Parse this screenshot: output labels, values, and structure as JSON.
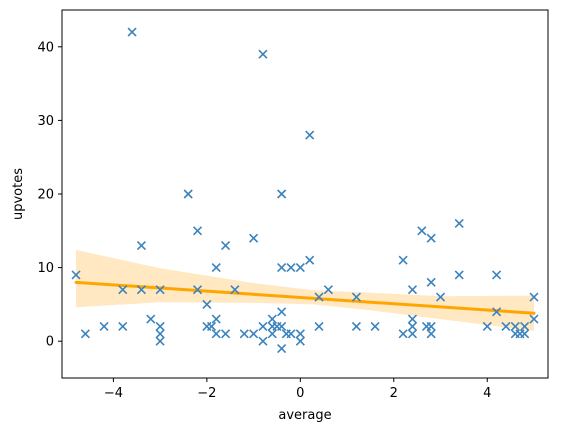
{
  "chart_data": {
    "type": "scatter",
    "title": "",
    "xlabel": "average",
    "ylabel": "upvotes",
    "xlim": [
      -5.1,
      5.3
    ],
    "ylim": [
      -5,
      45
    ],
    "xticks": [
      -4,
      -2,
      0,
      2,
      4
    ],
    "xtick_labels": [
      "−4",
      "−2",
      "0",
      "2",
      "4"
    ],
    "yticks": [
      0,
      10,
      20,
      30,
      40
    ],
    "ytick_labels": [
      "0",
      "10",
      "20",
      "30",
      "40"
    ],
    "grid": false,
    "marker": "x",
    "colors": {
      "points": "#3b83bd",
      "fit_line": "#ffa500",
      "confidence_band": "#ffe8c2"
    },
    "points": [
      [
        -4.8,
        9
      ],
      [
        -4.6,
        1
      ],
      [
        -4.2,
        2
      ],
      [
        -3.8,
        7
      ],
      [
        -3.8,
        2
      ],
      [
        -3.6,
        42
      ],
      [
        -3.4,
        13
      ],
      [
        -3.4,
        7
      ],
      [
        -3.2,
        3
      ],
      [
        -3.0,
        7
      ],
      [
        -3.0,
        2
      ],
      [
        -3.0,
        1
      ],
      [
        -3.0,
        0
      ],
      [
        -2.4,
        20
      ],
      [
        -2.2,
        15
      ],
      [
        -2.2,
        7
      ],
      [
        -2.0,
        5
      ],
      [
        -2.0,
        2
      ],
      [
        -1.9,
        2
      ],
      [
        -1.8,
        10
      ],
      [
        -1.8,
        3
      ],
      [
        -1.8,
        1
      ],
      [
        -1.6,
        13
      ],
      [
        -1.6,
        1
      ],
      [
        -1.4,
        7
      ],
      [
        -1.2,
        1
      ],
      [
        -1.0,
        14
      ],
      [
        -1.0,
        1
      ],
      [
        -0.8,
        39
      ],
      [
        -0.8,
        2
      ],
      [
        -0.8,
        0
      ],
      [
        -0.6,
        3
      ],
      [
        -0.6,
        2
      ],
      [
        -0.6,
        1
      ],
      [
        -0.5,
        2
      ],
      [
        -0.4,
        20
      ],
      [
        -0.4,
        10
      ],
      [
        -0.4,
        4
      ],
      [
        -0.4,
        2
      ],
      [
        -0.4,
        -1
      ],
      [
        -0.3,
        1
      ],
      [
        -0.2,
        10
      ],
      [
        -0.2,
        1
      ],
      [
        0.0,
        10
      ],
      [
        0.0,
        1
      ],
      [
        0.0,
        0
      ],
      [
        0.2,
        28
      ],
      [
        0.2,
        11
      ],
      [
        0.4,
        6
      ],
      [
        0.4,
        2
      ],
      [
        0.6,
        7
      ],
      [
        1.2,
        6
      ],
      [
        1.2,
        2
      ],
      [
        1.6,
        2
      ],
      [
        2.2,
        11
      ],
      [
        2.2,
        1
      ],
      [
        2.4,
        7
      ],
      [
        2.4,
        3
      ],
      [
        2.4,
        2
      ],
      [
        2.4,
        1
      ],
      [
        2.6,
        15
      ],
      [
        2.7,
        2
      ],
      [
        2.8,
        14
      ],
      [
        2.8,
        8
      ],
      [
        2.8,
        2
      ],
      [
        2.8,
        1
      ],
      [
        3.0,
        6
      ],
      [
        3.4,
        16
      ],
      [
        3.4,
        9
      ],
      [
        4.0,
        2
      ],
      [
        4.2,
        9
      ],
      [
        4.2,
        4
      ],
      [
        4.4,
        2
      ],
      [
        4.6,
        2
      ],
      [
        4.6,
        1
      ],
      [
        4.7,
        1
      ],
      [
        4.8,
        2
      ],
      [
        4.8,
        1
      ],
      [
        5.0,
        6
      ],
      [
        5.0,
        3
      ]
    ],
    "regression_line": [
      [
        -4.8,
        8.0
      ],
      [
        5.0,
        3.8
      ]
    ],
    "confidence_band_upper": [
      [
        -4.8,
        12.4
      ],
      [
        -3.0,
        9.9
      ],
      [
        -1.0,
        7.9
      ],
      [
        0.3,
        6.9
      ],
      [
        1.5,
        6.6
      ],
      [
        3.0,
        6.1
      ],
      [
        5.0,
        6.2
      ]
    ],
    "confidence_band_lower": [
      [
        -4.8,
        4.6
      ],
      [
        -3.0,
        5.3
      ],
      [
        -1.0,
        5.2
      ],
      [
        0.3,
        5.0
      ],
      [
        1.5,
        4.2
      ],
      [
        3.0,
        3.0
      ],
      [
        5.0,
        1.4
      ]
    ]
  }
}
